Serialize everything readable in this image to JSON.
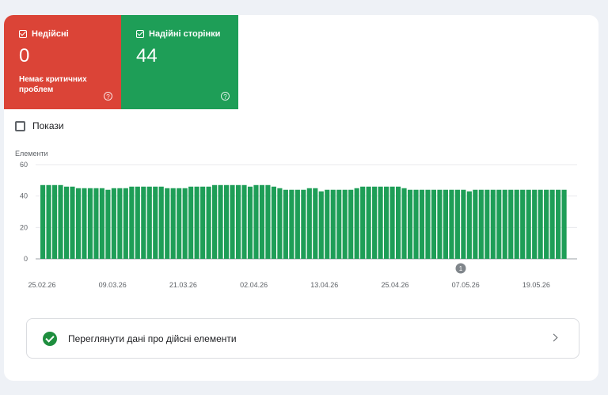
{
  "tiles": {
    "invalid": {
      "label": "Недійсні",
      "count": "0",
      "sub": "Немає критичних проблем",
      "color": "#db4437",
      "help_icon": "help-circle-icon"
    },
    "valid": {
      "label": "Надійні сторінки",
      "count": "44",
      "color": "#1e9e57",
      "help_icon": "help-circle-icon"
    }
  },
  "impressions": {
    "label": "Покази"
  },
  "link_row": {
    "label": "Переглянути дані про дійсні елементи",
    "icon": "check-circle-icon",
    "chevron": "chevron-right-icon"
  },
  "chart_data": {
    "type": "bar",
    "ylabel": "Елементи",
    "ylim": [
      0,
      60
    ],
    "yticks": [
      0,
      20,
      40,
      60
    ],
    "x_tick_labels": [
      "25.02.26",
      "09.03.26",
      "21.03.26",
      "02.04.26",
      "13.04.26",
      "25.04.26",
      "07.05.26",
      "19.05.26"
    ],
    "annotation": {
      "label": "1"
    },
    "color": "#1e9e57",
    "values": [
      47,
      47,
      47,
      47,
      46,
      46,
      45,
      45,
      45,
      45,
      45,
      44,
      45,
      45,
      45,
      46,
      46,
      46,
      46,
      46,
      46,
      45,
      45,
      45,
      45,
      46,
      46,
      46,
      46,
      47,
      47,
      47,
      47,
      47,
      47,
      46,
      47,
      47,
      47,
      46,
      45,
      44,
      44,
      44,
      44,
      45,
      45,
      43,
      44,
      44,
      44,
      44,
      44,
      45,
      46,
      46,
      46,
      46,
      46,
      46,
      46,
      45,
      44,
      44,
      44,
      44,
      44,
      44,
      44,
      44,
      44,
      44,
      43,
      44,
      44,
      44,
      44,
      44,
      44,
      44,
      44,
      44,
      44,
      44,
      44,
      44,
      44,
      44,
      44
    ]
  }
}
